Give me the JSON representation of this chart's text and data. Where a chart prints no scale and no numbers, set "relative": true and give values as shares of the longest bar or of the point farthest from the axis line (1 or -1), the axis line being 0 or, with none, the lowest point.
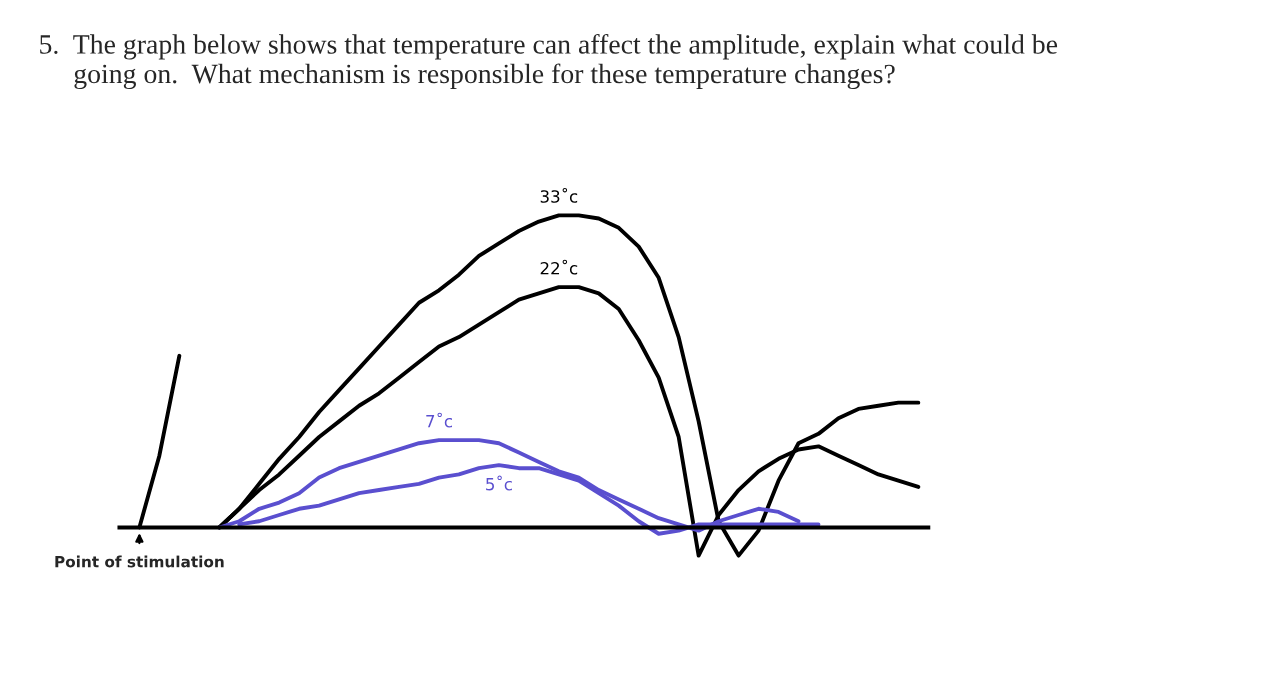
{
  "chart_data": {
    "type": "line",
    "relative": true,
    "title": "5.  The graph below shows that temperature can affect the amplitude, explain what could be\n     going on.  What mechanism is responsible for these temperature changes?",
    "categories": [
      null,
      null,
      null,
      null,
      null,
      null,
      null,
      null,
      null,
      null,
      null,
      null,
      null,
      null,
      null,
      null,
      null,
      null,
      null,
      null,
      null,
      null,
      null,
      null,
      null,
      null,
      null,
      null,
      null,
      null,
      null,
      null,
      null,
      null,
      null,
      null,
      null,
      null,
      null,
      null
    ],
    "series": [
      {
        "name": "33˚c",
        "color": "#000000",
        "values": [
          null,
          null,
          null,
          null,
          0,
          0.06,
          0.14,
          0.22,
          0.29,
          0.37,
          0.44,
          0.51,
          0.58,
          0.65,
          0.72,
          0.76,
          0.81,
          0.87,
          0.91,
          0.95,
          0.98,
          1.0,
          1.0,
          0.99,
          0.96,
          0.9,
          0.8,
          0.61,
          0.34,
          0.02,
          -0.09,
          -0.01,
          0.15,
          0.27,
          0.3,
          0.35,
          0.38,
          0.39,
          0.4,
          0.4
        ]
      },
      {
        "name": "22˚c",
        "color": "#000000",
        "values": [
          null,
          null,
          null,
          null,
          0,
          0.06,
          0.12,
          0.17,
          0.23,
          0.29,
          0.34,
          0.39,
          0.43,
          0.48,
          0.53,
          0.58,
          0.61,
          0.65,
          0.69,
          0.73,
          0.75,
          0.77,
          0.77,
          0.75,
          0.7,
          0.6,
          0.48,
          0.29,
          -0.09,
          0.04,
          0.12,
          0.18,
          0.22,
          0.25,
          0.26,
          0.23,
          0.2,
          0.17,
          0.15,
          0.13
        ]
      },
      {
        "name": "7˚c",
        "color": "#5a4fcf",
        "values": [
          null,
          null,
          null,
          null,
          0,
          0.02,
          0.06,
          0.08,
          0.11,
          0.16,
          0.19,
          0.21,
          0.23,
          0.25,
          0.27,
          0.28,
          0.28,
          0.28,
          0.27,
          0.24,
          0.21,
          0.18,
          0.16,
          0.12,
          0.09,
          0.06,
          0.03,
          0.01,
          -0.01,
          0.02,
          0.04,
          0.06,
          0.05,
          0.02,
          null,
          null,
          null,
          null,
          null,
          null
        ]
      },
      {
        "name": "5˚c",
        "color": "#5a4fcf",
        "values": [
          null,
          null,
          null,
          null,
          null,
          0.01,
          0.02,
          0.04,
          0.06,
          0.07,
          0.09,
          0.11,
          0.12,
          0.13,
          0.14,
          0.16,
          0.17,
          0.19,
          0.2,
          0.19,
          0.19,
          0.17,
          0.15,
          0.11,
          0.07,
          0.02,
          -0.02,
          -0.01,
          0.01,
          0.01,
          0.01,
          0.01,
          0.01,
          0.01,
          0.01,
          null,
          null,
          null,
          null,
          null
        ]
      },
      {
        "color": "#000000",
        "values": [
          0,
          0.23,
          0.55,
          null,
          null,
          null,
          null,
          null,
          null,
          null,
          null,
          null,
          null,
          null,
          null,
          null,
          null,
          null,
          null,
          null,
          null,
          null,
          null,
          null,
          null,
          null,
          null,
          null,
          null,
          null,
          null,
          null,
          null,
          null,
          null,
          null,
          null,
          null,
          null,
          null
        ]
      }
    ],
    "annotations": [
      "Point of stimulation"
    ],
    "legend": false,
    "marker": "none",
    "line_style": "solid"
  }
}
